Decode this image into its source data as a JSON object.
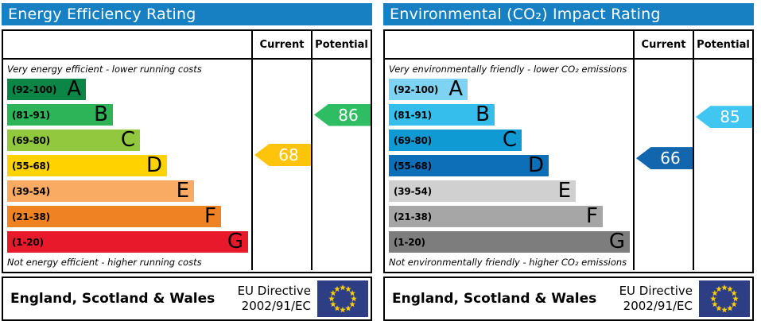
{
  "colors": {
    "header_bg": "#1780C2",
    "header_text": "#FFFFFF",
    "border": "#000000",
    "flag_bg": "#2D3E85",
    "flag_stars": "#FFCC00"
  },
  "charts": [
    {
      "title": "Energy Efficiency Rating",
      "header": {
        "current": "Current",
        "potential": "Potential"
      },
      "top_note": "Very energy efficient - lower running costs",
      "bottom_note": "Not energy efficient - higher running costs",
      "bands": [
        {
          "range": "(92-100)",
          "letter": "A",
          "min": 92,
          "max": 100,
          "color": "#0B8647"
        },
        {
          "range": "(81-91)",
          "letter": "B",
          "min": 81,
          "max": 91,
          "color": "#2DB459"
        },
        {
          "range": "(69-80)",
          "letter": "C",
          "min": 69,
          "max": 80,
          "color": "#92C83E"
        },
        {
          "range": "(55-68)",
          "letter": "D",
          "min": 55,
          "max": 68,
          "color": "#FFD200"
        },
        {
          "range": "(39-54)",
          "letter": "E",
          "min": 39,
          "max": 54,
          "color": "#F9AB63"
        },
        {
          "range": "(21-38)",
          "letter": "F",
          "min": 21,
          "max": 38,
          "color": "#EF8223"
        },
        {
          "range": "(1-20)",
          "letter": "G",
          "min": 1,
          "max": 20,
          "color": "#E9192C"
        }
      ],
      "current": {
        "value": 68,
        "color": "#FDC40B"
      },
      "potential": {
        "value": 86,
        "color": "#2EBD62"
      },
      "footer": {
        "region": "England, Scotland & Wales",
        "directive_line1": "EU Directive",
        "directive_line2": "2002/91/EC"
      }
    },
    {
      "title": "Environmental (CO₂) Impact Rating",
      "header": {
        "current": "Current",
        "potential": "Potential"
      },
      "top_note": "Very environmentally friendly - lower CO₂ emissions",
      "bottom_note": "Not environmentally friendly - higher CO₂ emissions",
      "bands": [
        {
          "range": "(92-100)",
          "letter": "A",
          "min": 92,
          "max": 100,
          "color": "#7ED3F3"
        },
        {
          "range": "(81-91)",
          "letter": "B",
          "min": 81,
          "max": 91,
          "color": "#35BEEC"
        },
        {
          "range": "(69-80)",
          "letter": "C",
          "min": 69,
          "max": 80,
          "color": "#0F9AD3"
        },
        {
          "range": "(55-68)",
          "letter": "D",
          "min": 55,
          "max": 68,
          "color": "#0D6FB8"
        },
        {
          "range": "(39-54)",
          "letter": "E",
          "min": 39,
          "max": 54,
          "color": "#D0D0D0"
        },
        {
          "range": "(21-38)",
          "letter": "F",
          "min": 21,
          "max": 38,
          "color": "#A6A6A6"
        },
        {
          "range": "(1-20)",
          "letter": "G",
          "min": 1,
          "max": 20,
          "color": "#7D7D7D"
        }
      ],
      "current": {
        "value": 66,
        "color": "#1266AE"
      },
      "potential": {
        "value": 85,
        "color": "#41C6F1"
      },
      "footer": {
        "region": "England, Scotland & Wales",
        "directive_line1": "EU Directive",
        "directive_line2": "2002/91/EC"
      }
    }
  ],
  "chart_data": [
    {
      "type": "bar",
      "title": "Energy Efficiency Rating",
      "categories": [
        "A (92-100)",
        "B (81-91)",
        "C (69-80)",
        "D (55-68)",
        "E (39-54)",
        "F (21-38)",
        "G (1-20)"
      ],
      "band_ranges": [
        [
          92,
          100
        ],
        [
          81,
          91
        ],
        [
          69,
          80
        ],
        [
          55,
          68
        ],
        [
          39,
          54
        ],
        [
          21,
          38
        ],
        [
          1,
          20
        ]
      ],
      "band_colors": [
        "#0B8647",
        "#2DB459",
        "#92C83E",
        "#FFD200",
        "#F9AB63",
        "#EF8223",
        "#E9192C"
      ],
      "values": {
        "current": 68,
        "potential": 86
      },
      "current_band": "D",
      "potential_band": "B",
      "xlabel": "",
      "ylabel": "",
      "annotations": [
        "Very energy efficient - lower running costs",
        "Not energy efficient - higher running costs"
      ],
      "footer": "England, Scotland & Wales — EU Directive 2002/91/EC"
    },
    {
      "type": "bar",
      "title": "Environmental (CO₂) Impact Rating",
      "categories": [
        "A (92-100)",
        "B (81-91)",
        "C (69-80)",
        "D (55-68)",
        "E (39-54)",
        "F (21-38)",
        "G (1-20)"
      ],
      "band_ranges": [
        [
          92,
          100
        ],
        [
          81,
          91
        ],
        [
          69,
          80
        ],
        [
          55,
          68
        ],
        [
          39,
          54
        ],
        [
          21,
          38
        ],
        [
          1,
          20
        ]
      ],
      "band_colors": [
        "#7ED3F3",
        "#35BEEC",
        "#0F9AD3",
        "#0D6FB8",
        "#D0D0D0",
        "#A6A6A6",
        "#7D7D7D"
      ],
      "values": {
        "current": 66,
        "potential": 85
      },
      "current_band": "D",
      "potential_band": "B",
      "xlabel": "",
      "ylabel": "",
      "annotations": [
        "Very environmentally friendly - lower CO₂ emissions",
        "Not environmentally friendly - higher CO₂ emissions"
      ],
      "footer": "England, Scotland & Wales — EU Directive 2002/91/EC"
    }
  ]
}
